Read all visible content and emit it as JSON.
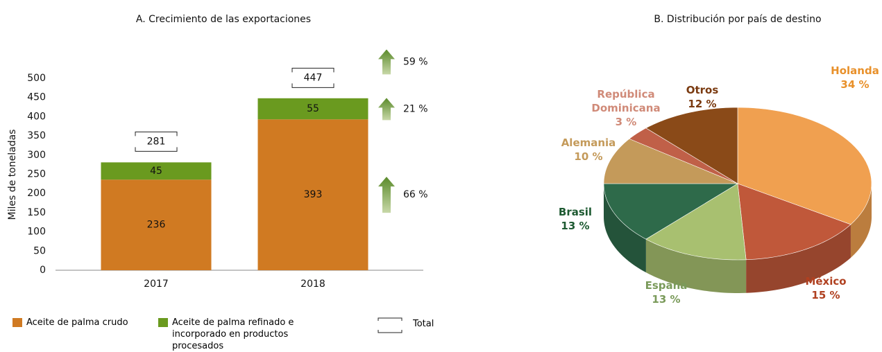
{
  "chart_data": [
    {
      "type": "bar",
      "stacked": true,
      "title": "A. Crecimiento de las exportaciones",
      "ylabel": "Miles de toneladas",
      "categories": [
        "2017",
        "2018"
      ],
      "series": [
        {
          "name": "Aceite de palma crudo",
          "color": "#d07a22",
          "values": [
            236,
            393
          ]
        },
        {
          "name": "Aceite de palma refinado e incorporado en productos procesados",
          "color": "#6a9a1f",
          "values": [
            45,
            55
          ]
        }
      ],
      "totals": [
        281,
        447
      ],
      "total_label": "Total",
      "growth_values": [
        66,
        21,
        59
      ],
      "growth_labels": [
        "66 %",
        "21 %",
        "59 %"
      ],
      "ylim": [
        0,
        500
      ],
      "yticks": [
        0,
        50,
        100,
        150,
        200,
        250,
        300,
        350,
        400,
        450,
        500
      ]
    },
    {
      "type": "pie3d",
      "title": "B. Distribución por país de destino",
      "categories": [
        "Holanda",
        "México",
        "España",
        "Brasil",
        "Alemania",
        "República Dominicana",
        "Otros"
      ],
      "values": [
        34,
        15,
        13,
        13,
        10,
        3,
        12
      ],
      "value_labels": [
        "34 %",
        "15 %",
        "13 %",
        "13 %",
        "10 %",
        "3 %",
        "12 %"
      ],
      "colors": [
        "#f0a050",
        "#c0583a",
        "#a8c070",
        "#2e6a4a",
        "#c49a5a",
        "#c06048",
        "#8a4a18"
      ],
      "label_colors": [
        "#e8902a",
        "#b04020",
        "#7a9a5a",
        "#1e5a32",
        "#c49a5a",
        "#d08a78",
        "#7a3a10"
      ]
    }
  ]
}
